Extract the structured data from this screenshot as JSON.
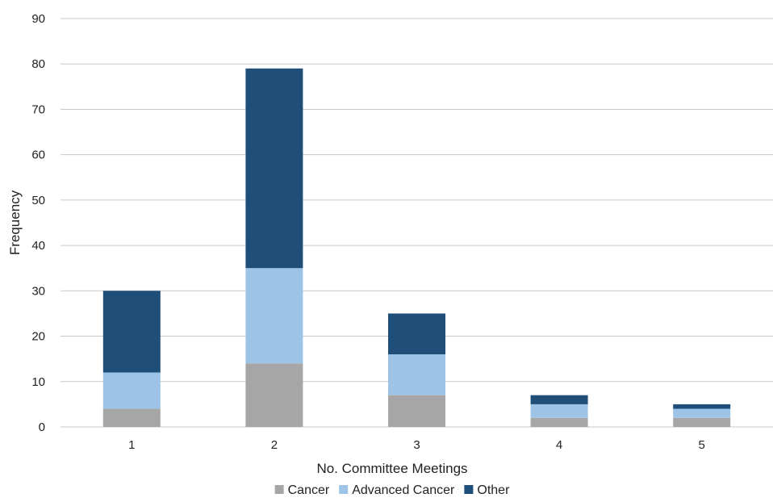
{
  "chart_data": {
    "type": "bar",
    "stacked": true,
    "categories": [
      "1",
      "2",
      "3",
      "4",
      "5"
    ],
    "series": [
      {
        "name": "Cancer",
        "values": [
          4,
          14,
          7,
          2,
          2
        ],
        "color": "#a6a6a6"
      },
      {
        "name": "Advanced Cancer",
        "values": [
          8,
          21,
          9,
          3,
          2
        ],
        "color": "#9dc3e6"
      },
      {
        "name": "Other",
        "values": [
          18,
          44,
          9,
          2,
          1
        ],
        "color": "#1f4e79"
      }
    ],
    "title": "",
    "xlabel": "No. Committee Meetings",
    "ylabel": "Frequency",
    "ylim": [
      0,
      90
    ],
    "yticks": [
      0,
      10,
      20,
      30,
      40,
      50,
      60,
      70,
      80,
      90
    ],
    "grid": true,
    "legend_position": "bottom"
  }
}
